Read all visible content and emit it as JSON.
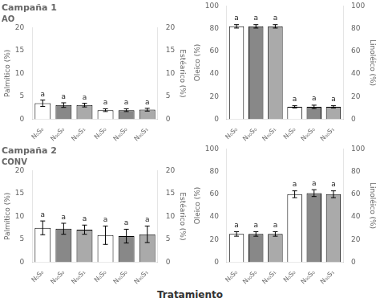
{
  "xlabel": "Tratamiento",
  "chart_data": [
    {
      "type": "bar",
      "title": "Campaña 1",
      "subtitle": "AO",
      "categories": [
        "N₀S₀",
        "N₀₀S₀",
        "N₀₀S₁",
        "N₀S₀",
        "N₀₀S₀",
        "N₀₀S₁"
      ],
      "values": [
        3.5,
        3.1,
        3.1,
        2.0,
        2.0,
        2.1
      ],
      "errors": [
        0.7,
        0.5,
        0.4,
        0.3,
        0.3,
        0.3
      ],
      "colors": [
        "white",
        "#888888",
        "#aaaaaa",
        "white",
        "#888888",
        "#aaaaaa"
      ],
      "annotations": [
        "a",
        "a",
        "a",
        "a",
        "a",
        "a"
      ],
      "ylabel": "Palmítico (%)",
      "y2label": "Estéarico (%)",
      "ylim": [
        0,
        20
      ],
      "yticks": [
        0,
        5,
        10,
        15,
        20
      ],
      "y2lim": [
        0,
        20
      ],
      "y2ticks": [
        0,
        5,
        10,
        15,
        20
      ],
      "grid": false
    },
    {
      "type": "bar",
      "categories": [
        "N₀S₀",
        "N₀₀S₀",
        "N₀₀S₁",
        "N₀S₀",
        "N₀₀S₀",
        "N₀₀S₁"
      ],
      "values": [
        82,
        82,
        82,
        11,
        11,
        11
      ],
      "errors": [
        1.5,
        1.5,
        1.5,
        1.0,
        1.5,
        1.0
      ],
      "colors": [
        "white",
        "#888888",
        "#aaaaaa",
        "white",
        "#888888",
        "#aaaaaa"
      ],
      "annotations": [
        "a",
        "a",
        "a",
        "a",
        "a",
        "a"
      ],
      "ylabel": "Oleico (%)",
      "y2label": "Linoléico (%)",
      "ylim": [
        0,
        100
      ],
      "yticks": [
        0,
        20,
        40,
        60,
        80,
        100
      ],
      "y2lim": [
        0,
        100
      ],
      "y2ticks": [
        0,
        20,
        40,
        60,
        80,
        100
      ],
      "grid": false
    },
    {
      "type": "bar",
      "title": "Campaña 2",
      "subtitle": "CONV",
      "categories": [
        "N₀S₀",
        "N₀₀S₀",
        "N₀₀S₁",
        "N₀S₀",
        "N₀₀S₀",
        "N₀₀S₁"
      ],
      "values": [
        7.5,
        7.3,
        7.1,
        5.9,
        5.7,
        6.1
      ],
      "errors": [
        1.5,
        1.2,
        1.0,
        2.0,
        1.5,
        1.8
      ],
      "colors": [
        "white",
        "#888888",
        "#aaaaaa",
        "white",
        "#888888",
        "#aaaaaa"
      ],
      "annotations": [
        "a",
        "a",
        "a",
        "a",
        "a",
        "a"
      ],
      "ylabel": "Palmítico (%)",
      "y2label": "Estéarico (%)",
      "ylim": [
        0,
        20
      ],
      "yticks": [
        0,
        5,
        10,
        15,
        20
      ],
      "y2lim": [
        0,
        20
      ],
      "y2ticks": [
        0,
        5,
        10,
        15,
        20
      ],
      "grid": false
    },
    {
      "type": "bar",
      "categories": [
        "N₀S₀",
        "N₀₀S₀",
        "N₀₀S₁",
        "N₀S₀",
        "N₀₀S₀",
        "N₀₀S₁"
      ],
      "values": [
        25,
        25,
        25,
        60,
        61,
        60
      ],
      "errors": [
        2.0,
        2.0,
        2.0,
        3.0,
        3.0,
        3.0
      ],
      "colors": [
        "white",
        "#888888",
        "#aaaaaa",
        "white",
        "#888888",
        "#aaaaaa"
      ],
      "annotations": [
        "a",
        "a",
        "a",
        "a",
        "a",
        "a"
      ],
      "ylabel": "Oleico (%)",
      "y2label": "Linoléico (%)",
      "ylim": [
        0,
        100
      ],
      "yticks": [
        0,
        20,
        40,
        60,
        80,
        100
      ],
      "y2lim": [
        0,
        100
      ],
      "y2ticks": [
        0,
        20,
        40,
        60,
        80,
        100
      ],
      "grid": false
    }
  ]
}
